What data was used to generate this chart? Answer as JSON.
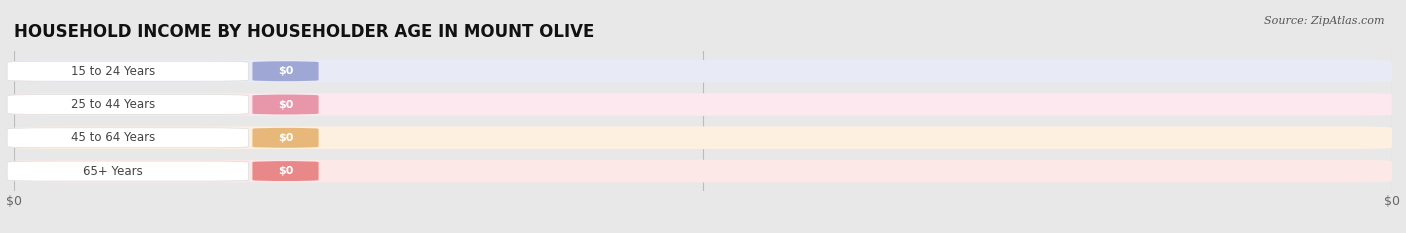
{
  "title": "HOUSEHOLD INCOME BY HOUSEHOLDER AGE IN MOUNT OLIVE",
  "source": "Source: ZipAtlas.com",
  "categories": [
    "15 to 24 Years",
    "25 to 44 Years",
    "45 to 64 Years",
    "65+ Years"
  ],
  "values": [
    0,
    0,
    0,
    0
  ],
  "bar_colors": [
    "#9fa8d4",
    "#e896aa",
    "#e8b87a",
    "#e88888"
  ],
  "bar_bg_colors": [
    "#e8eaf6",
    "#fce8ee",
    "#fdf0e0",
    "#fde8e8"
  ],
  "tick_labels": [
    "$0",
    "$0"
  ],
  "fig_bg_color": "#e8e8e8",
  "title_fontsize": 12,
  "title_color": "#111111",
  "source_color": "#555555",
  "label_text_color": "#444444",
  "value_text_color": "#ffffff",
  "gridline_color": "#bbbbbb",
  "xlim": [
    0,
    1
  ]
}
